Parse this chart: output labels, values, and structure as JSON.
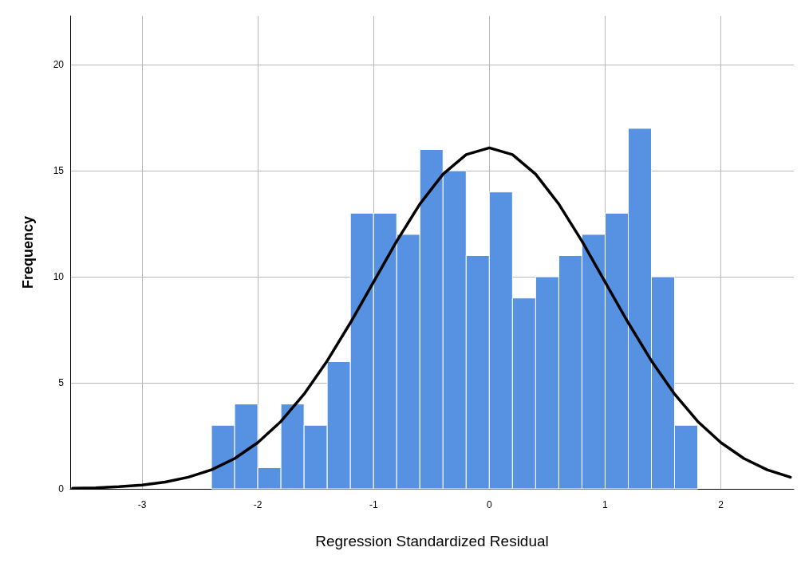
{
  "chart_data": {
    "type": "histogram",
    "xlabel": "Regression Standardized Residual",
    "ylabel": "Frequency",
    "bins": [
      -2.4,
      -2.2,
      -2.0,
      -1.8,
      -1.6,
      -1.4,
      -1.2,
      -1.0,
      -0.8,
      -0.6,
      -0.4,
      -0.2,
      0.0,
      0.2,
      0.4,
      0.6,
      0.8,
      1.0,
      1.2,
      1.4,
      1.6,
      1.8
    ],
    "values": [
      3,
      4,
      1,
      4,
      3,
      6,
      13,
      13,
      12,
      16,
      15,
      11,
      14,
      9,
      10,
      11,
      12,
      13,
      17,
      10,
      3
    ],
    "color": "#5691e2",
    "series": [
      {
        "type": "line",
        "color": "#000000",
        "x": [
          -3.6,
          -3.4,
          -3.2,
          -3.0,
          -2.8,
          -2.6,
          -2.4,
          -2.2,
          -2.0,
          -1.8,
          -1.6,
          -1.4,
          -1.2,
          -1.0,
          -0.8,
          -0.6,
          -0.4,
          -0.2,
          0.0,
          0.2,
          0.4,
          0.6,
          0.8,
          1.0,
          1.2,
          1.4,
          1.6,
          1.8,
          2.0,
          2.2,
          2.4,
          2.6
        ],
        "values": [
          0.03,
          0.05,
          0.1,
          0.18,
          0.32,
          0.55,
          0.9,
          1.43,
          2.18,
          3.18,
          4.47,
          6.04,
          7.83,
          9.75,
          11.68,
          13.43,
          14.84,
          15.76,
          16.08,
          15.76,
          14.84,
          13.43,
          11.68,
          9.75,
          7.83,
          6.04,
          4.47,
          3.18,
          2.18,
          1.43,
          0.9,
          0.55
        ]
      }
    ],
    "xlim": [
      -3.62,
      2.63
    ],
    "xticks": [
      -3,
      -2,
      -1,
      0,
      1,
      2
    ],
    "ylim": [
      0,
      22.3
    ],
    "yticks": [
      0,
      5,
      10,
      15,
      20
    ],
    "grid": true,
    "marker": "none",
    "line_style": "solid"
  }
}
